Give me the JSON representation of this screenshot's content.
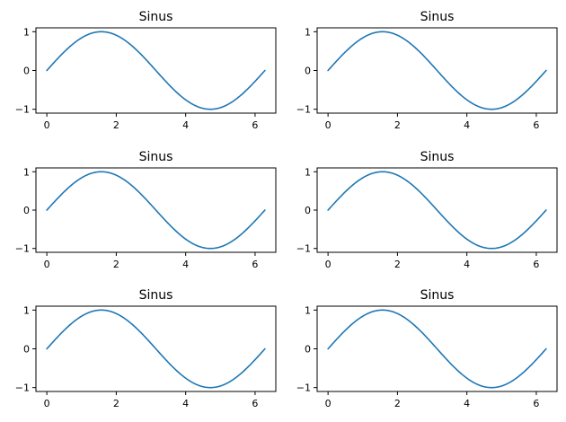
{
  "colors": {
    "line": "#1f77b4",
    "axes": "#000000",
    "background": "#ffffff"
  },
  "chart_data": [
    {
      "type": "line",
      "title": "Sinus",
      "function": "sin",
      "x_range": [
        0,
        6.283185
      ],
      "xlim": [
        -0.314,
        6.597
      ],
      "ylim": [
        -1.1,
        1.1
      ],
      "xticks": [
        0,
        2,
        4,
        6
      ],
      "yticks": [
        1,
        0,
        -1
      ],
      "xtick_labels": [
        "0",
        "2",
        "4",
        "6"
      ],
      "ytick_labels": [
        "1",
        "0",
        "−1"
      ],
      "xlabel": "",
      "ylabel": "",
      "grid": false,
      "series": [
        {
          "name": "sin(x)",
          "color": "#1f77b4"
        }
      ]
    },
    {
      "type": "line",
      "title": "Sinus",
      "function": "sin",
      "x_range": [
        0,
        6.283185
      ],
      "xlim": [
        -0.314,
        6.597
      ],
      "ylim": [
        -1.1,
        1.1
      ],
      "xticks": [
        0,
        2,
        4,
        6
      ],
      "yticks": [
        1,
        0,
        -1
      ],
      "xtick_labels": [
        "0",
        "2",
        "4",
        "6"
      ],
      "ytick_labels": [
        "1",
        "0",
        "−1"
      ],
      "xlabel": "",
      "ylabel": "",
      "grid": false,
      "series": [
        {
          "name": "sin(x)",
          "color": "#1f77b4"
        }
      ]
    },
    {
      "type": "line",
      "title": "Sinus",
      "function": "sin",
      "x_range": [
        0,
        6.283185
      ],
      "xlim": [
        -0.314,
        6.597
      ],
      "ylim": [
        -1.1,
        1.1
      ],
      "xticks": [
        0,
        2,
        4,
        6
      ],
      "yticks": [
        1,
        0,
        -1
      ],
      "xtick_labels": [
        "0",
        "2",
        "4",
        "6"
      ],
      "ytick_labels": [
        "1",
        "0",
        "−1"
      ],
      "xlabel": "",
      "ylabel": "",
      "grid": false,
      "series": [
        {
          "name": "sin(x)",
          "color": "#1f77b4"
        }
      ]
    },
    {
      "type": "line",
      "title": "Sinus",
      "function": "sin",
      "x_range": [
        0,
        6.283185
      ],
      "xlim": [
        -0.314,
        6.597
      ],
      "ylim": [
        -1.1,
        1.1
      ],
      "xticks": [
        0,
        2,
        4,
        6
      ],
      "yticks": [
        1,
        0,
        -1
      ],
      "xtick_labels": [
        "0",
        "2",
        "4",
        "6"
      ],
      "ytick_labels": [
        "1",
        "0",
        "−1"
      ],
      "xlabel": "",
      "ylabel": "",
      "grid": false,
      "series": [
        {
          "name": "sin(x)",
          "color": "#1f77b4"
        }
      ]
    },
    {
      "type": "line",
      "title": "Sinus",
      "function": "sin",
      "x_range": [
        0,
        6.283185
      ],
      "xlim": [
        -0.314,
        6.597
      ],
      "ylim": [
        -1.1,
        1.1
      ],
      "xticks": [
        0,
        2,
        4,
        6
      ],
      "yticks": [
        1,
        0,
        -1
      ],
      "xtick_labels": [
        "0",
        "2",
        "4",
        "6"
      ],
      "ytick_labels": [
        "1",
        "0",
        "−1"
      ],
      "xlabel": "",
      "ylabel": "",
      "grid": false,
      "series": [
        {
          "name": "sin(x)",
          "color": "#1f77b4"
        }
      ]
    },
    {
      "type": "line",
      "title": "Sinus",
      "function": "sin",
      "x_range": [
        0,
        6.283185
      ],
      "xlim": [
        -0.314,
        6.597
      ],
      "ylim": [
        -1.1,
        1.1
      ],
      "xticks": [
        0,
        2,
        4,
        6
      ],
      "yticks": [
        1,
        0,
        -1
      ],
      "xtick_labels": [
        "0",
        "2",
        "4",
        "6"
      ],
      "ytick_labels": [
        "1",
        "0",
        "−1"
      ],
      "xlabel": "",
      "ylabel": "",
      "grid": false,
      "series": [
        {
          "name": "sin(x)",
          "color": "#1f77b4"
        }
      ]
    }
  ]
}
